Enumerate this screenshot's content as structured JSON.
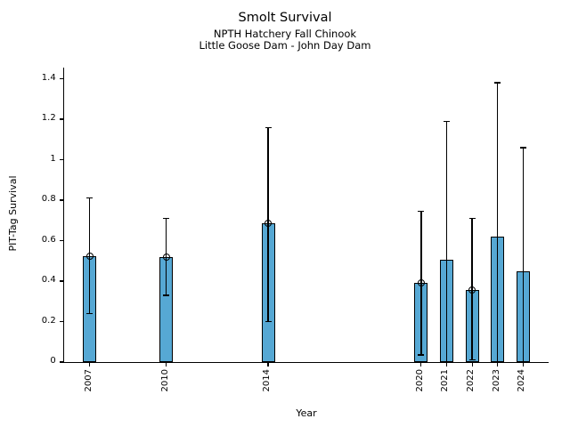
{
  "header": {
    "title": "Smolt Survival",
    "subtitle_line1": "NPTH Hatchery Fall Chinook",
    "subtitle_line2": "Little Goose Dam - John Day Dam"
  },
  "chart_data": {
    "type": "bar",
    "title": "Smolt Survival",
    "subtitle": [
      "NPTH Hatchery Fall Chinook",
      "Little Goose Dam - John Day Dam"
    ],
    "xlabel": "Year",
    "ylabel": "PIT-Tag Survival",
    "categories": [
      "2007",
      "2010",
      "2014",
      "2020",
      "2021",
      "2022",
      "2023",
      "2024"
    ],
    "x": [
      2007,
      2010,
      2014,
      2020,
      2021,
      2022,
      2023,
      2024
    ],
    "values": [
      0.525,
      0.52,
      0.685,
      0.39,
      0.505,
      0.355,
      0.62,
      0.45
    ],
    "error_low": [
      0.24,
      0.33,
      0.2,
      0.035,
      0.0,
      0.01,
      0.0,
      0.0
    ],
    "error_high": [
      0.81,
      0.71,
      1.16,
      0.745,
      1.19,
      0.71,
      1.38,
      1.06
    ],
    "marker_at_top": [
      true,
      true,
      true,
      true,
      false,
      true,
      false,
      false
    ],
    "marker_style": "open-circle",
    "yticks": [
      0,
      0.2,
      0.4,
      0.6,
      0.8,
      1,
      1.2,
      1.4
    ],
    "ytick_labels": [
      "0",
      "0.2",
      "0.4",
      "0.6",
      "0.8",
      "1",
      "1.2",
      "1.4"
    ],
    "xlim": [
      2006,
      2025
    ],
    "ylim": [
      0,
      1.455
    ],
    "grid": false,
    "legend": "none",
    "bar_color": "#56a8d4",
    "bar_edge_color": "#000000",
    "error_color": "#000000",
    "axis_color": "#000000"
  }
}
